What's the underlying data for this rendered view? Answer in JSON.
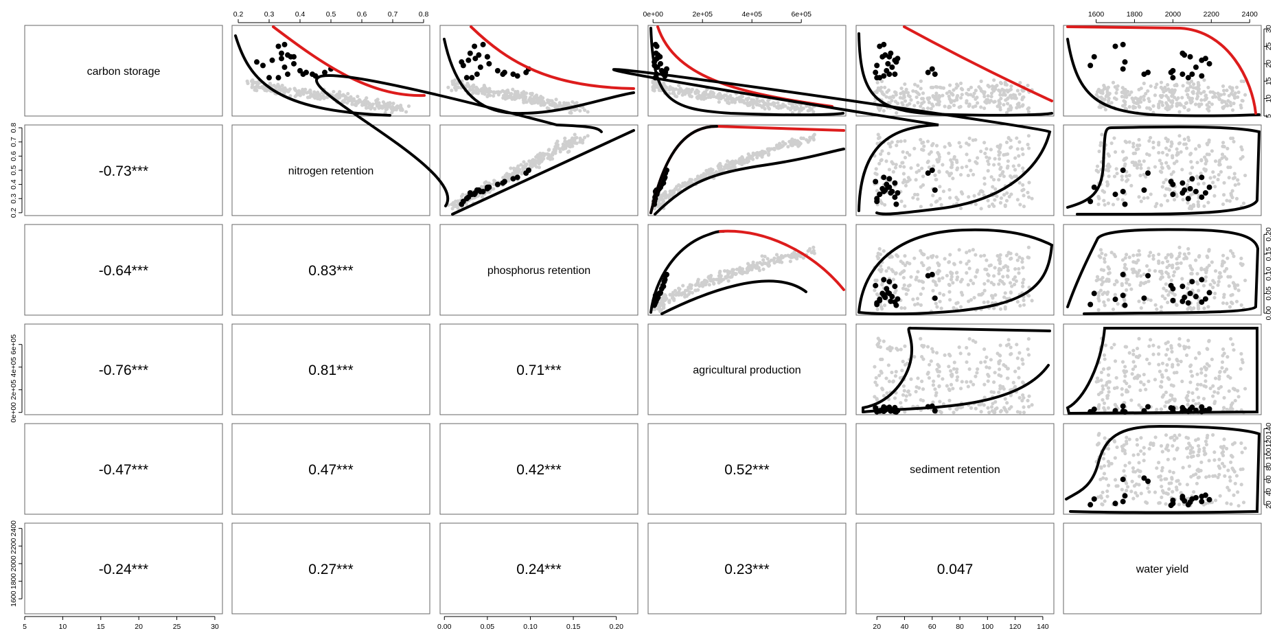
{
  "chart_data": {
    "type": "scatter",
    "variables": [
      {
        "name": "carbon storage",
        "range": [
          5,
          31
        ],
        "ticks": [
          5,
          10,
          15,
          20,
          25,
          30
        ],
        "tick_labels": [
          "5",
          "10",
          "15",
          "20",
          "25",
          "30"
        ]
      },
      {
        "name": "nitrogen retention",
        "range": [
          0.18,
          0.82
        ],
        "ticks": [
          0.2,
          0.3,
          0.4,
          0.5,
          0.6,
          0.7,
          0.8
        ],
        "tick_labels": [
          "0.2",
          "0.3",
          "0.4",
          "0.5",
          "0.6",
          "0.7",
          "0.8"
        ]
      },
      {
        "name": "phosphorus retention",
        "range": [
          -0.005,
          0.225
        ],
        "ticks": [
          0,
          0.05,
          0.1,
          0.15,
          0.2
        ],
        "tick_labels": [
          "0.00",
          "0.05",
          "0.10",
          "0.15",
          "0.20"
        ]
      },
      {
        "name": "agricultural production",
        "range": [
          -20000,
          780000
        ],
        "ticks": [
          0,
          200000,
          400000,
          600000
        ],
        "tick_labels": [
          "0e+00",
          "2e+05",
          "4e+05",
          "6e+05"
        ]
      },
      {
        "name": "sediment retention",
        "range": [
          5,
          148
        ],
        "ticks": [
          20,
          40,
          60,
          80,
          100,
          120,
          140
        ],
        "tick_labels": [
          "20",
          "40",
          "60",
          "80",
          "100",
          "120",
          "140"
        ]
      },
      {
        "name": "water yield",
        "range": [
          1430,
          2460
        ],
        "ticks": [
          1600,
          1800,
          2000,
          2200,
          2400
        ],
        "tick_labels": [
          "1600",
          "1800",
          "2000",
          "2200",
          "2400"
        ]
      }
    ],
    "correlations": [
      {
        "row": 2,
        "col": 1,
        "label": "-0.73***"
      },
      {
        "row": 3,
        "col": 1,
        "label": "-0.64***"
      },
      {
        "row": 3,
        "col": 2,
        "label": "0.83***"
      },
      {
        "row": 4,
        "col": 1,
        "label": "-0.76***"
      },
      {
        "row": 4,
        "col": 2,
        "label": "0.81***"
      },
      {
        "row": 4,
        "col": 3,
        "label": "0.71***"
      },
      {
        "row": 5,
        "col": 1,
        "label": "-0.47***"
      },
      {
        "row": 5,
        "col": 2,
        "label": "0.47***"
      },
      {
        "row": 5,
        "col": 3,
        "label": "0.42***"
      },
      {
        "row": 5,
        "col": 4,
        "label": "0.52***"
      },
      {
        "row": 6,
        "col": 1,
        "label": "-0.24***"
      },
      {
        "row": 6,
        "col": 2,
        "label": "0.27***"
      },
      {
        "row": 6,
        "col": 3,
        "label": "0.24***"
      },
      {
        "row": 6,
        "col": 4,
        "label": "0.23***"
      },
      {
        "row": 6,
        "col": 5,
        "label": "0.047"
      }
    ],
    "highlighted_points": [
      {
        "cs": 25.0,
        "nr": 0.33,
        "pr": 0.035,
        "ap": 15000,
        "sr": 22,
        "wy": 1700
      },
      {
        "cs": 25.5,
        "nr": 0.35,
        "pr": 0.045,
        "ap": 10000,
        "sr": 25,
        "wy": 1740
      },
      {
        "cs": 23.0,
        "nr": 0.34,
        "pr": 0.03,
        "ap": 12000,
        "sr": 30,
        "wy": 2050
      },
      {
        "cs": 22.5,
        "nr": 0.36,
        "pr": 0.04,
        "ap": 20000,
        "sr": 26,
        "wy": 2060
      },
      {
        "cs": 22.0,
        "nr": 0.37,
        "pr": 0.05,
        "ap": 25000,
        "sr": 24,
        "wy": 2090
      },
      {
        "cs": 21.0,
        "nr": 0.31,
        "pr": 0.028,
        "ap": 8000,
        "sr": 33,
        "wy": 2150
      },
      {
        "cs": 20.0,
        "nr": 0.38,
        "pr": 0.052,
        "ap": 30000,
        "sr": 28,
        "wy": 2190
      },
      {
        "cs": 19.5,
        "nr": 0.28,
        "pr": 0.022,
        "ap": 6000,
        "sr": 20,
        "wy": 1570
      },
      {
        "cs": 19.0,
        "nr": 0.35,
        "pr": 0.042,
        "ap": 18000,
        "sr": 31,
        "wy": 2120
      },
      {
        "cs": 18.0,
        "nr": 0.4,
        "pr": 0.062,
        "ap": 35000,
        "sr": 27,
        "wy": 2000
      },
      {
        "cs": 17.5,
        "nr": 0.42,
        "pr": 0.07,
        "ap": 40000,
        "sr": 19,
        "wy": 1990
      },
      {
        "cs": 17.0,
        "nr": 0.41,
        "pr": 0.068,
        "ap": 42000,
        "sr": 33,
        "wy": 2050
      },
      {
        "cs": 17.0,
        "nr": 0.44,
        "pr": 0.08,
        "ap": 45000,
        "sr": 29,
        "wy": 2100
      },
      {
        "cs": 16.5,
        "nr": 0.45,
        "pr": 0.085,
        "ap": 48000,
        "sr": 25,
        "wy": 2150
      },
      {
        "cs": 17.5,
        "nr": 0.48,
        "pr": 0.095,
        "ap": 50000,
        "sr": 57,
        "wy": 1870
      },
      {
        "cs": 18.5,
        "nr": 0.5,
        "pr": 0.098,
        "ap": 55000,
        "sr": 60,
        "wy": 1740
      },
      {
        "cs": 17.0,
        "nr": 0.36,
        "pr": 0.038,
        "ap": 14000,
        "sr": 62,
        "wy": 1850
      },
      {
        "cs": 16.0,
        "nr": 0.33,
        "pr": 0.032,
        "ap": 12000,
        "sr": 22,
        "wy": 2000
      },
      {
        "cs": 16.0,
        "nr": 0.3,
        "pr": 0.026,
        "ap": 9000,
        "sr": 20,
        "wy": 2080
      },
      {
        "cs": 22.0,
        "nr": 0.38,
        "pr": 0.05,
        "ap": 28000,
        "sr": 29,
        "wy": 1590
      },
      {
        "cs": 21.5,
        "nr": 0.34,
        "pr": 0.036,
        "ap": 16000,
        "sr": 35,
        "wy": 2170
      },
      {
        "cs": 20.5,
        "nr": 0.26,
        "pr": 0.02,
        "ap": 5000,
        "sr": 34,
        "wy": 1750
      }
    ],
    "background_points_color": "#cfcfcf",
    "highlighted_points_color": "#000000",
    "boundary_colors": {
      "lower_or_hull": "#000000",
      "pareto_frontier": "#dd1c1c"
    },
    "grid": false
  }
}
